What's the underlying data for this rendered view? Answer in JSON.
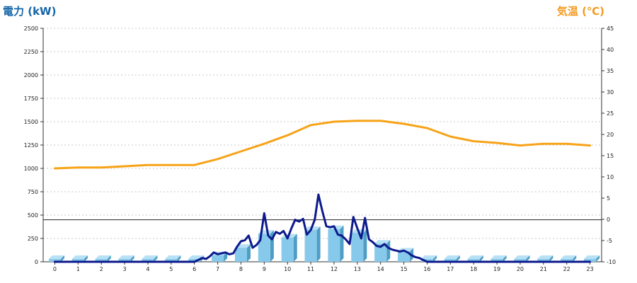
{
  "chart_data": {
    "type": "bar",
    "left_axis_title": "電力 (kW)",
    "right_axis_title": "気温 (℃)",
    "categories": [
      "0",
      "1",
      "2",
      "3",
      "4",
      "5",
      "6",
      "7",
      "8",
      "9",
      "10",
      "11",
      "12",
      "13",
      "14",
      "15",
      "16",
      "17",
      "18",
      "19",
      "20",
      "21",
      "22",
      "23"
    ],
    "y_left": {
      "min": 0,
      "max": 2500,
      "step": 250
    },
    "y_right": {
      "min": -10,
      "max": 45,
      "step": 5
    },
    "reference_line": {
      "value": 450
    },
    "grid": true,
    "series": [
      {
        "kind": "bar",
        "axis": "left",
        "color": "#87c9ea",
        "values": [
          30,
          30,
          30,
          30,
          30,
          30,
          30,
          70,
          150,
          300,
          260,
          340,
          350,
          310,
          195,
          110,
          30,
          30,
          30,
          30,
          30,
          30,
          30,
          30
        ]
      },
      {
        "kind": "line",
        "axis": "left",
        "color": "#0d1a8c",
        "x": [
          0,
          1,
          2,
          3,
          4,
          5,
          6,
          6.17,
          6.33,
          6.5,
          6.67,
          6.83,
          7,
          7.17,
          7.33,
          7.5,
          7.67,
          7.83,
          8,
          8.17,
          8.33,
          8.5,
          8.67,
          8.83,
          9,
          9.17,
          9.33,
          9.5,
          9.67,
          9.83,
          10,
          10.17,
          10.33,
          10.5,
          10.67,
          10.83,
          11,
          11.17,
          11.33,
          11.5,
          11.67,
          11.83,
          12,
          12.17,
          12.33,
          12.5,
          12.67,
          12.83,
          13,
          13.17,
          13.33,
          13.5,
          13.67,
          13.83,
          14,
          14.17,
          14.33,
          14.5,
          14.67,
          14.83,
          15,
          15.17,
          15.33,
          15.5,
          15.67,
          15.83,
          16,
          17,
          18,
          19,
          20,
          21,
          22,
          23
        ],
        "values": [
          0,
          0,
          0,
          0,
          0,
          0,
          0,
          20,
          40,
          30,
          60,
          100,
          80,
          90,
          100,
          80,
          90,
          160,
          220,
          230,
          280,
          150,
          180,
          230,
          520,
          280,
          240,
          320,
          300,
          330,
          250,
          360,
          450,
          430,
          460,
          290,
          340,
          450,
          720,
          540,
          380,
          370,
          380,
          290,
          280,
          240,
          190,
          480,
          360,
          250,
          470,
          240,
          210,
          170,
          160,
          190,
          150,
          130,
          120,
          110,
          120,
          100,
          70,
          50,
          40,
          20,
          0,
          0,
          0,
          0,
          0,
          0,
          0,
          0
        ]
      },
      {
        "kind": "line",
        "axis": "right",
        "color": "#f7a318",
        "values": [
          12,
          12.2,
          12.2,
          12.5,
          12.8,
          12.8,
          12.8,
          14.2,
          16,
          17.8,
          19.8,
          22.2,
          23,
          23.2,
          23.2,
          22.5,
          21.5,
          19.5,
          18.4,
          18,
          17.4,
          17.8,
          17.8,
          17.4
        ]
      }
    ]
  }
}
